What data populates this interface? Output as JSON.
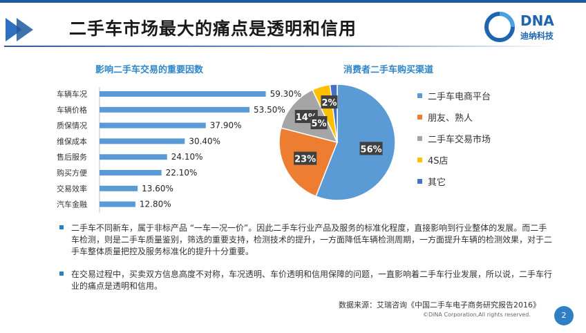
{
  "title": "二手车市场最大的痛点是透明和信用",
  "logo": {
    "mark": "DNA",
    "name": "迪纳科技"
  },
  "left_section_title": "影响二手车交易的重要因数",
  "right_section_title": "消费者二手车购买渠道",
  "colors": {
    "accent": "#2f7fc3",
    "bar": "#5b9bd5",
    "title_blue": "#2e86c8"
  },
  "chart_data": [
    {
      "type": "bar",
      "orientation": "horizontal",
      "title": "影响二手车交易的重要因数",
      "categories": [
        "车辆车况",
        "车辆价格",
        "质保情况",
        "维保成本",
        "售后服务",
        "购买方便",
        "交易效率",
        "汽车金融"
      ],
      "values": [
        59.3,
        53.5,
        37.9,
        30.4,
        24.1,
        22.1,
        13.6,
        12.8
      ],
      "value_labels": [
        "59.30%",
        "53.50%",
        "37.90%",
        "30.40%",
        "24.10%",
        "22.10%",
        "13.60%",
        "12.80%"
      ],
      "xlim": [
        0,
        70
      ],
      "grid": false,
      "color": "#5b9bd5"
    },
    {
      "type": "pie",
      "title": "消费者二手车购买渠道",
      "legend_position": "right",
      "slices": [
        {
          "label": "二手车电商平台",
          "value": 56,
          "display": "56%",
          "color": "#5b9bd5"
        },
        {
          "label": "朋友、熟人",
          "value": 23,
          "display": "23%",
          "color": "#ed7d31"
        },
        {
          "label": "二手车交易市场",
          "value": 14,
          "display": "14%",
          "color": "#a5a5a5"
        },
        {
          "label": "4S店",
          "value": 5,
          "display": "5%",
          "color": "#ffc000"
        },
        {
          "label": "其它",
          "value": 2,
          "display": "2%",
          "color": "#4472c4"
        }
      ]
    }
  ],
  "bullets": [
    "二手车不同新车，属于非标产品  “一车一况一价”。因此二手车行业产品及服务的标准化程度，直接影响到行业整体的发展。而二手车检测，则是二手车质量鉴别，筛选的重要支持，检测技术的提升，一方面降低车辆检测周期，一方面提升车辆的检测效果，对于二手车整体质量把控及服务标准化的提升十分重要。",
    "在交易过程中，买卖双方信息高度不对称，车况透明、车价透明和信用保障的问题，一直影响着二手车行业发展，所以说，二手车行业的痛点是透明和信用。"
  ],
  "source": "数据来源：艾瑞咨询《中国二手车电子商务研究报告2016》",
  "copyright": "©DiNA Corporation,All rights reserved.",
  "page_number": "2"
}
